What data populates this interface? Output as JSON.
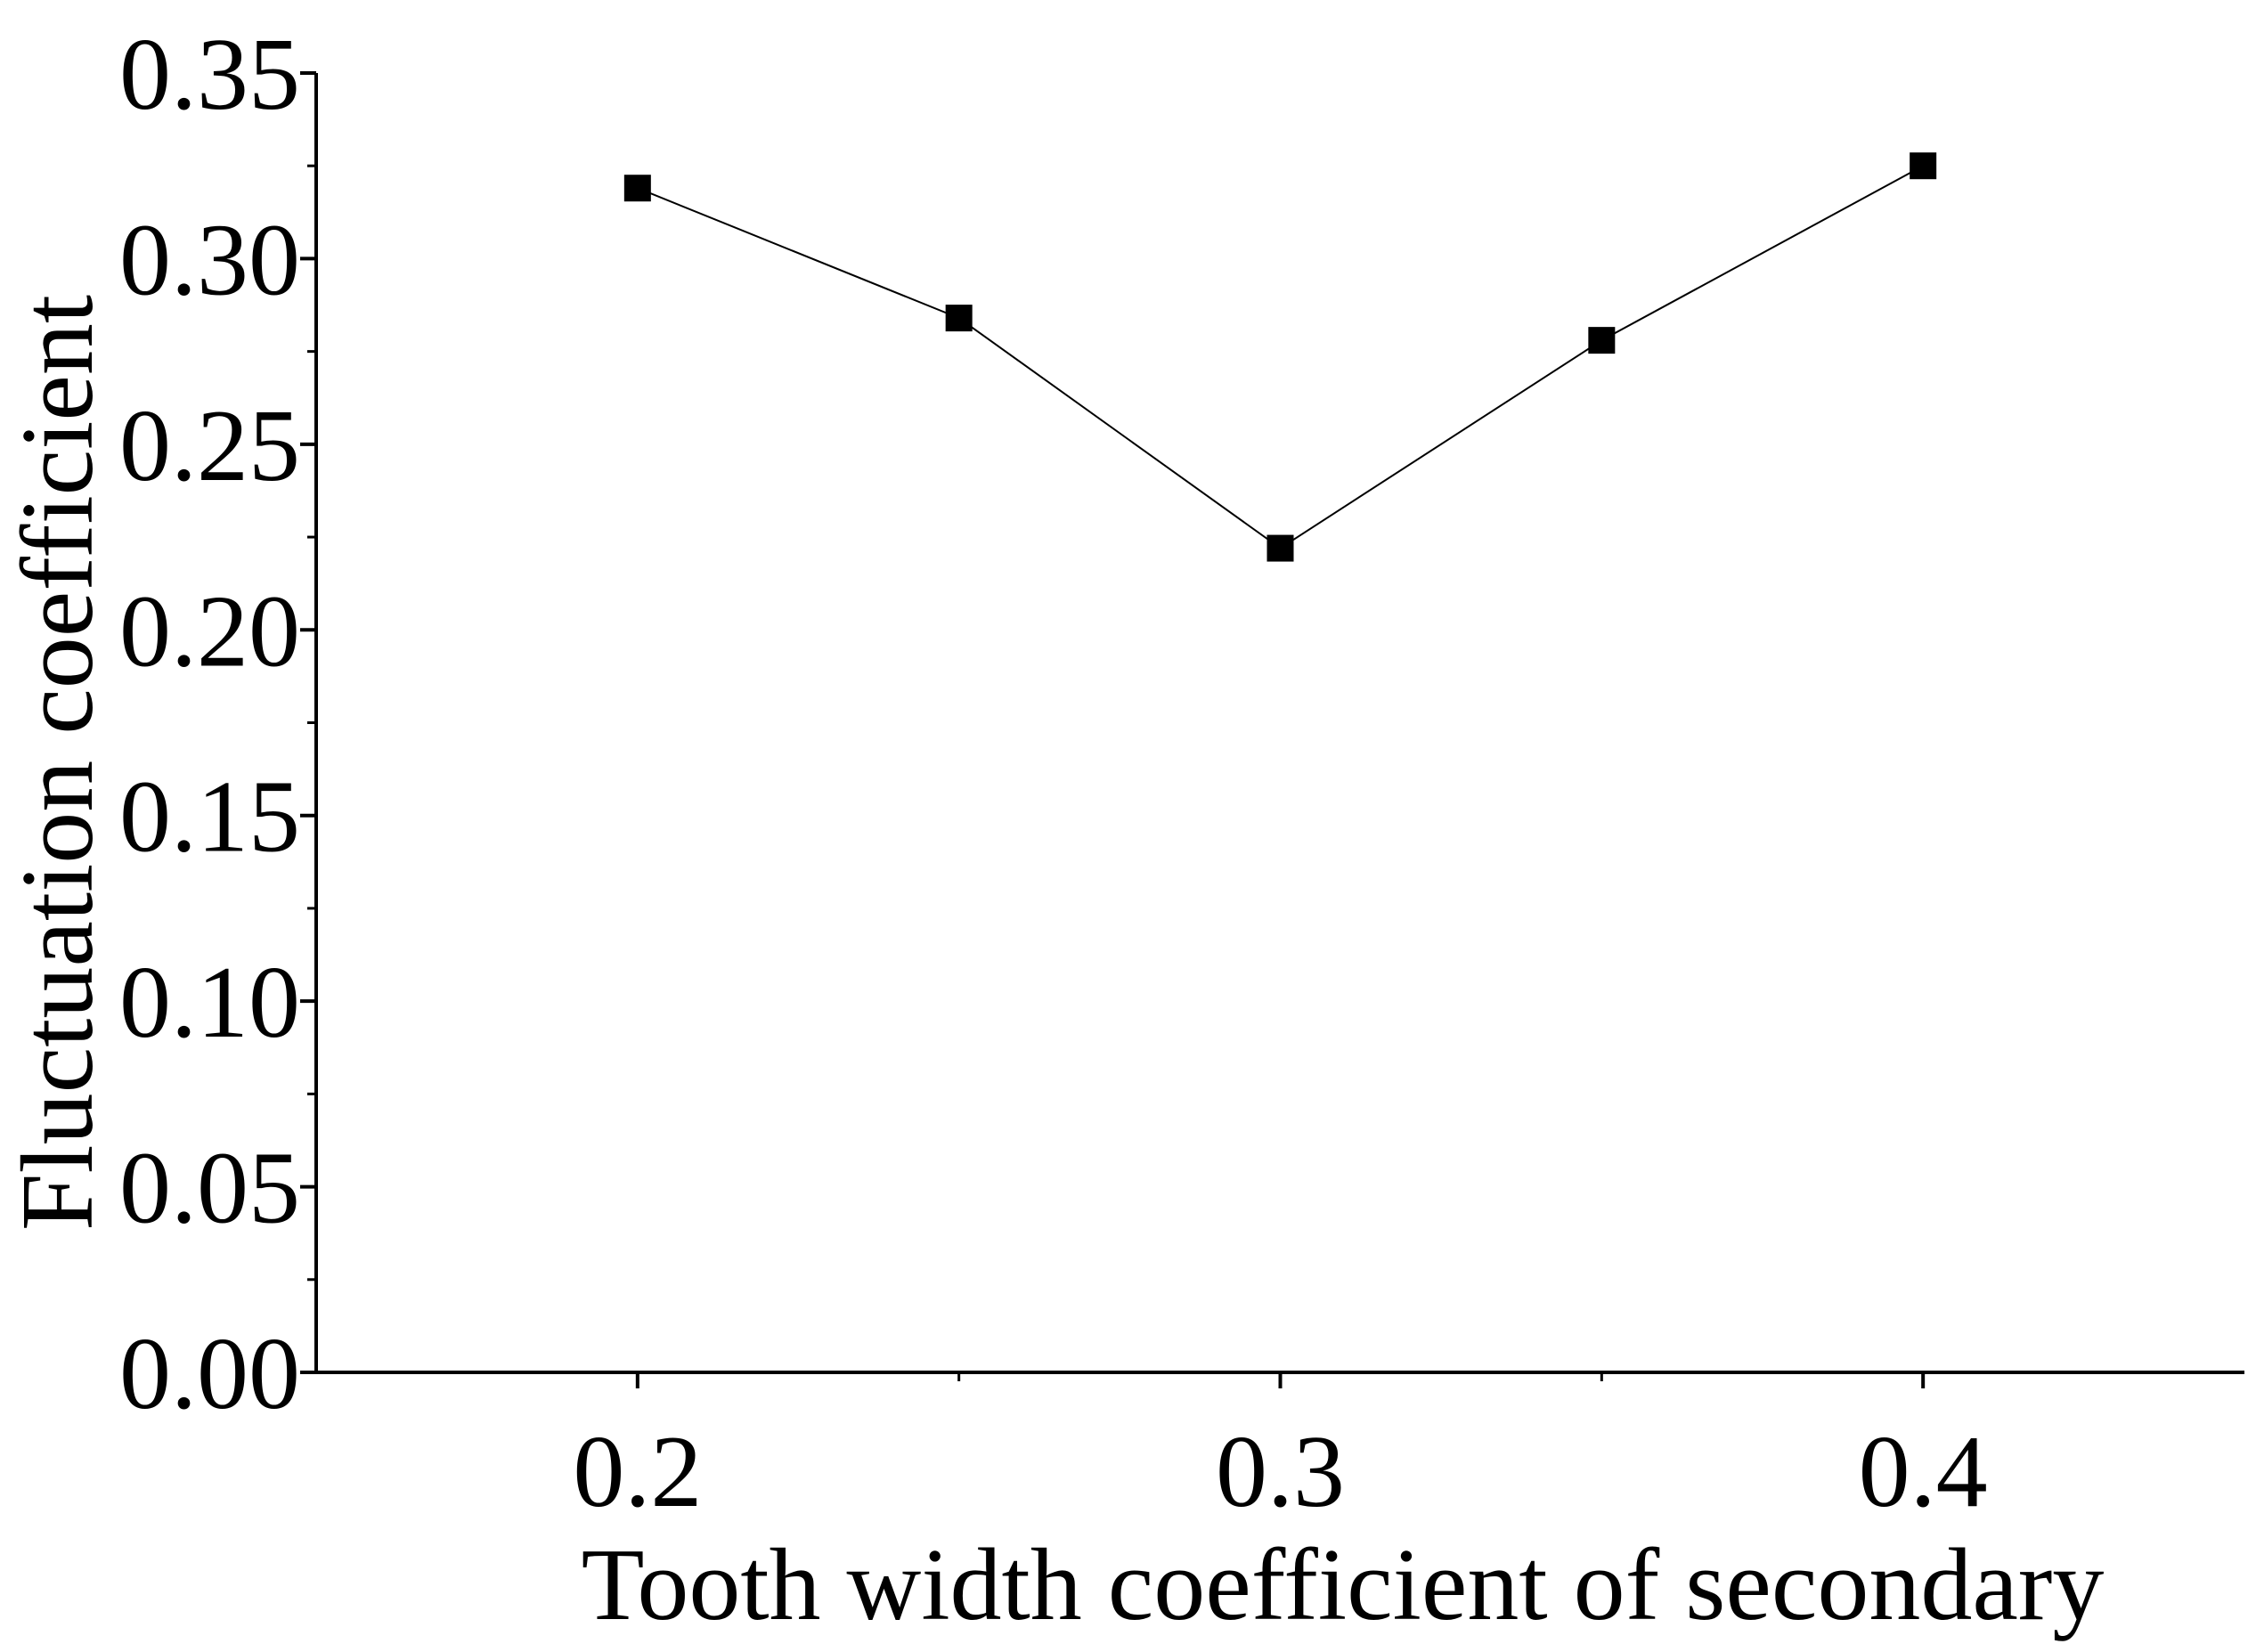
{
  "chart_data": {
    "type": "line",
    "title": "",
    "xlabel": "Tooth width coefficient of secondary",
    "ylabel": "Fluctuation coefficient",
    "xlim": [
      0.15,
      0.45
    ],
    "ylim": [
      0.0,
      0.35
    ],
    "x_ticks": [
      0.2,
      0.3,
      0.4
    ],
    "x_minor_ticks": [
      0.25,
      0.35
    ],
    "x_tick_labels": [
      "0.2",
      "0.3",
      "0.4"
    ],
    "y_ticks": [
      0.0,
      0.05,
      0.1,
      0.15,
      0.2,
      0.25,
      0.3,
      0.35
    ],
    "y_minor_ticks": [
      0.025,
      0.075,
      0.125,
      0.175,
      0.225,
      0.275,
      0.325
    ],
    "y_tick_labels": [
      "0.00",
      "0.05",
      "0.10",
      "0.15",
      "0.20",
      "0.25",
      "0.30",
      "0.35"
    ],
    "grid": false,
    "legend": "none",
    "series": [
      {
        "x": [
          0.2,
          0.25,
          0.3,
          0.35,
          0.4
        ],
        "y": [
          0.319,
          0.284,
          0.222,
          0.278,
          0.325
        ],
        "marker": "square",
        "color": "#000000"
      }
    ]
  }
}
